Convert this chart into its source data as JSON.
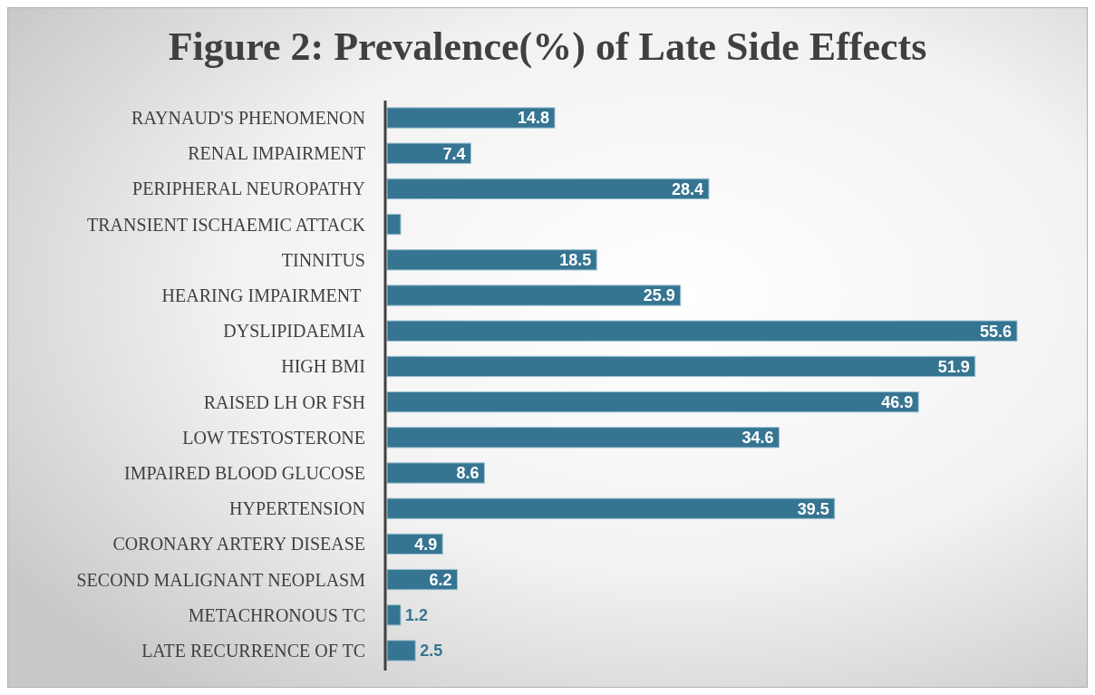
{
  "chart_data": {
    "type": "bar",
    "orientation": "horizontal",
    "title": "Figure 2: Prevalence(%) of Late Side Effects",
    "categories": [
      "RAYNAUD'S PHENOMENON",
      "RENAL IMPAIRMENT",
      "PERIPHERAL NEUROPATHY",
      "TRANSIENT ISCHAEMIC ATTACK",
      "TINNITUS",
      "HEARING IMPAIRMENT ",
      "DYSLIPIDAEMIA",
      "HIGH BMI",
      "RAISED LH OR FSH",
      "LOW TESTOSTERONE",
      "IMPAIRED BLOOD GLUCOSE",
      "HYPERTENSION",
      "CORONARY ARTERY DISEASE",
      "SECOND MALIGNANT NEOPLASM",
      "METACHRONOUS TC",
      "LATE RECURRENCE OF TC"
    ],
    "values": [
      14.8,
      7.4,
      28.4,
      1.2,
      18.5,
      25.9,
      55.6,
      51.9,
      46.9,
      34.6,
      8.6,
      39.5,
      4.9,
      6.2,
      1.2,
      2.5
    ],
    "value_labels": [
      "14.8",
      "7.4",
      "28.4",
      null,
      "18.5",
      "25.9",
      "55.6",
      "51.9",
      "46.9",
      "34.6",
      "8.6",
      "39.5",
      "4.9",
      "6.2",
      "1.2",
      "2.5"
    ],
    "color": "#367592",
    "tick_labels": "y"
  }
}
